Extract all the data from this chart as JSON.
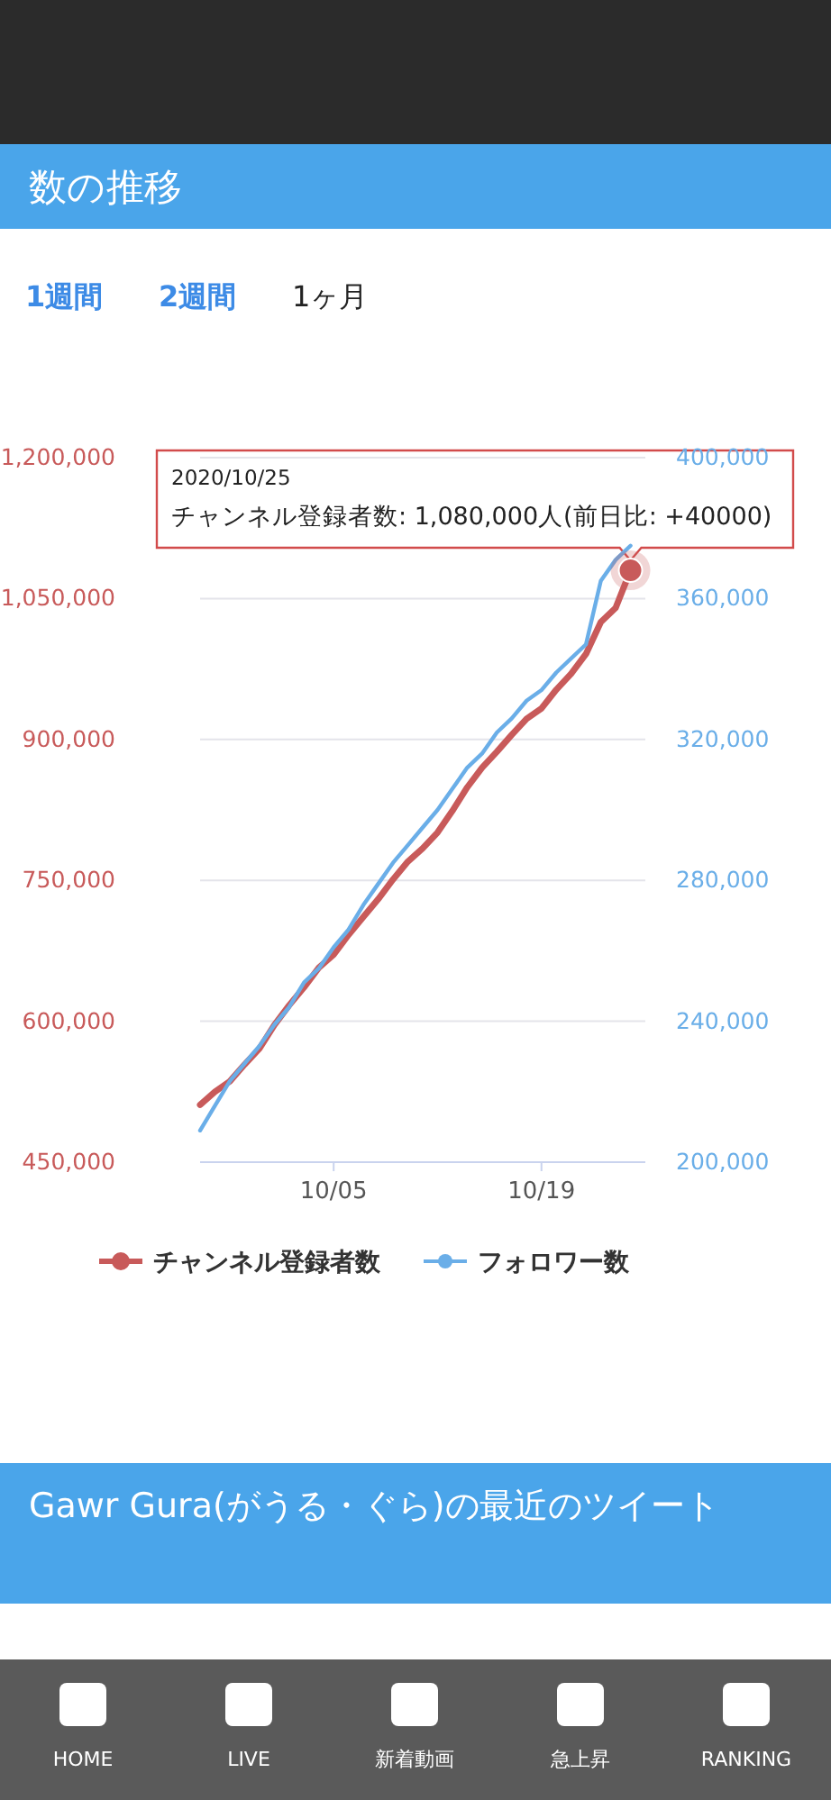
{
  "chart_data": {
    "type": "line",
    "title": "数の推移",
    "x": [
      "2020-09-26",
      "2020-09-27",
      "2020-09-28",
      "2020-09-29",
      "2020-09-30",
      "2020-10-01",
      "2020-10-02",
      "2020-10-03",
      "2020-10-04",
      "2020-10-05",
      "2020-10-06",
      "2020-10-07",
      "2020-10-08",
      "2020-10-09",
      "2020-10-10",
      "2020-10-11",
      "2020-10-12",
      "2020-10-13",
      "2020-10-14",
      "2020-10-15",
      "2020-10-16",
      "2020-10-17",
      "2020-10-18",
      "2020-10-19",
      "2020-10-20",
      "2020-10-21",
      "2020-10-22",
      "2020-10-23",
      "2020-10-24",
      "2020-10-25"
    ],
    "series": [
      {
        "name": "チャンネル登録者数",
        "color": "#c85a5a",
        "values": [
          511000,
          525000,
          536000,
          554000,
          571000,
          596000,
          617000,
          636000,
          657000,
          671000,
          692000,
          711000,
          730000,
          751000,
          770000,
          784000,
          801000,
          824000,
          849000,
          870000,
          887000,
          905000,
          922000,
          933000,
          953000,
          970000,
          991000,
          1025000,
          1040000,
          1080000
        ]
      },
      {
        "name": "フォロワー数",
        "color": "#6aaee8",
        "axis": "y2",
        "values": [
          209000,
          216000,
          223000,
          228000,
          233000,
          239000,
          244000,
          251000,
          255000,
          261000,
          266000,
          273000,
          279000,
          285000,
          290000,
          295000,
          300000,
          306000,
          312000,
          316000,
          322000,
          326000,
          331000,
          334000,
          339000,
          343000,
          347000,
          365000,
          371000,
          375000
        ]
      }
    ],
    "xlim": [
      "2020-09-26",
      "2020-10-26"
    ],
    "xticks": [
      {
        "value": "2020-10-05",
        "label": "10/05"
      },
      {
        "value": "2020-10-19",
        "label": "10/19"
      }
    ],
    "ylim": [
      450000,
      1200000
    ],
    "yticks": [
      {
        "value": 450000,
        "label": "450,000"
      },
      {
        "value": 600000,
        "label": "600,000"
      },
      {
        "value": 750000,
        "label": "750,000"
      },
      {
        "value": 900000,
        "label": "900,000"
      },
      {
        "value": 1050000,
        "label": "1,050,000"
      },
      {
        "value": 1200000,
        "label": "1,200,000"
      }
    ],
    "y2lim": [
      200000,
      400000
    ],
    "y2ticks": [
      {
        "value": 200000,
        "label": "200,000"
      },
      {
        "value": 240000,
        "label": "240,000"
      },
      {
        "value": 280000,
        "label": "280,000"
      },
      {
        "value": 320000,
        "label": "320,000"
      },
      {
        "value": 360000,
        "label": "360,000"
      },
      {
        "value": 400000,
        "label": "400,000"
      }
    ],
    "grid": "y",
    "legend": "bottom",
    "line_style": "solid",
    "annotations": [
      "1週間",
      "2週間",
      "1ヶ月",
      "2020/10/25",
      {
        "text": "チャンネル登録者数: 1,080,000人(前日比: +40000)",
        "x": "2020-10-25",
        "y": 1080000
      },
      "Gawr Gura(がうる・ぐら)の最近のツイート",
      "HOME",
      "LIVE",
      "新着動画",
      "急上昇",
      "RANKING"
    ]
  }
}
